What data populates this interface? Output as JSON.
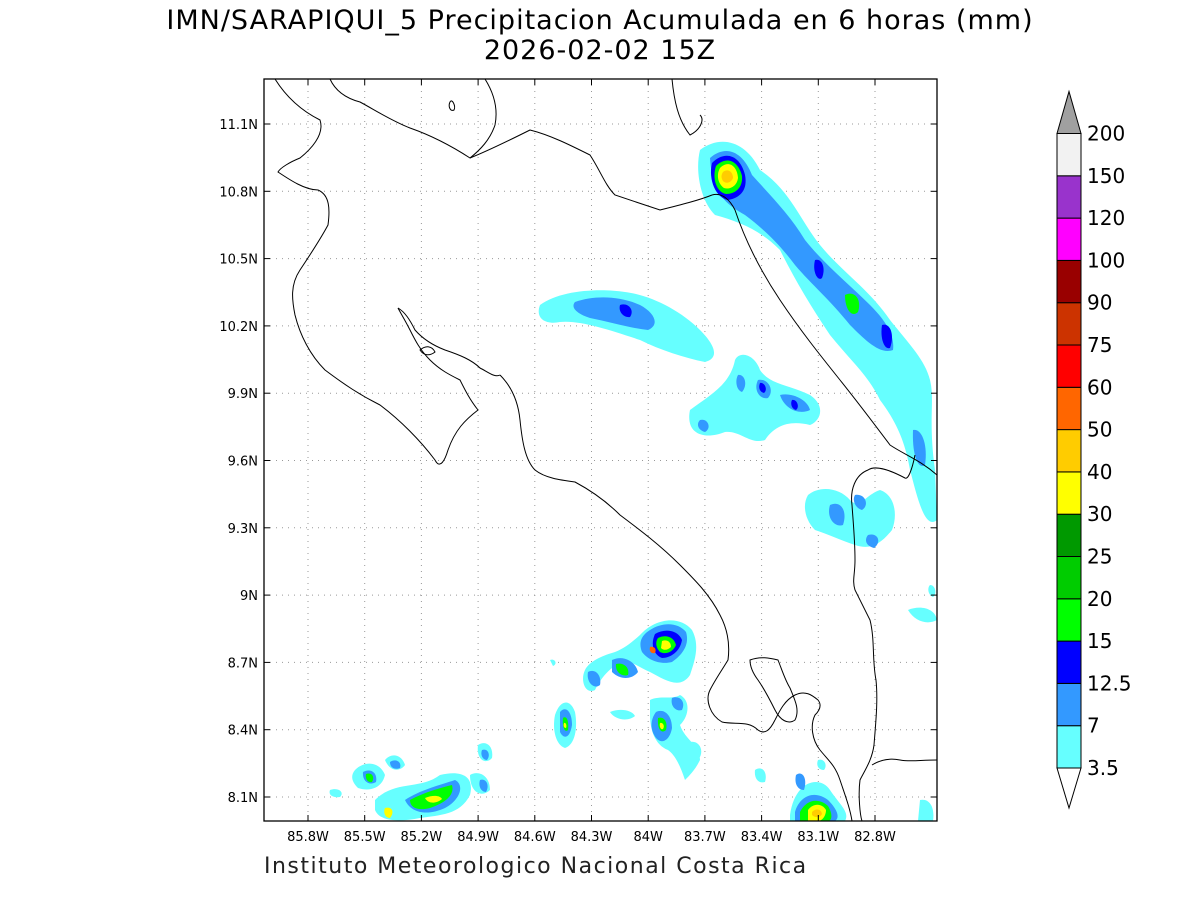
{
  "title": "IMN/SARAPIQUI_5 Precipitacion Acumulada en 6 horas (mm)",
  "subtitle": "2026-02-02 15Z",
  "footer": "Instituto Meteorologico Nacional Costa Rica",
  "chart_data": {
    "type": "heatmap",
    "x_ticks": [
      "85.8W",
      "85.5W",
      "85.2W",
      "84.9W",
      "84.6W",
      "84.3W",
      "84W",
      "83.7W",
      "83.4W",
      "83.1W",
      "82.8W"
    ],
    "y_ticks": [
      "11.1N",
      "10.8N",
      "10.5N",
      "10.2N",
      "9.9N",
      "9.6N",
      "9.3N",
      "9N",
      "8.7N",
      "8.4N",
      "8.1N"
    ],
    "grid": true,
    "legend_position": "right",
    "colorbar": {
      "levels": [
        "3.5",
        "7",
        "12.5",
        "15",
        "20",
        "25",
        "30",
        "40",
        "50",
        "60",
        "75",
        "90",
        "100",
        "120",
        "150",
        "200"
      ],
      "colors": [
        "#66ffff",
        "#3399ff",
        "#0000ff",
        "#00ff00",
        "#00cc00",
        "#009900",
        "#ffff00",
        "#ffcc00",
        "#ff6600",
        "#ff0000",
        "#cc3300",
        "#990000",
        "#ff00ff",
        "#9933cc",
        "#f2f2f2",
        "#a0a0a0"
      ]
    }
  }
}
